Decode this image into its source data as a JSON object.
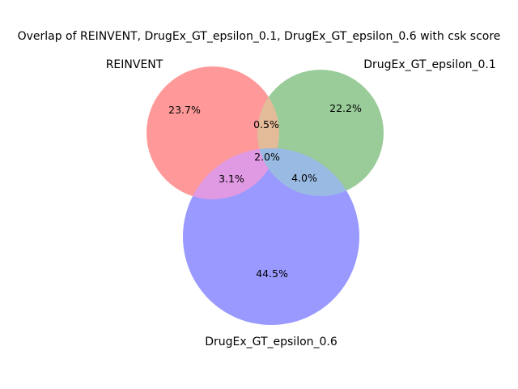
{
  "chart_data": {
    "type": "venn",
    "title": "Overlap of REINVENT, DrugEx_GT_epsilon_0.1, DrugEx_GT_epsilon_0.6 with csk score",
    "sets": [
      {
        "name": "REINVENT",
        "color": "#ff9999"
      },
      {
        "name": "DrugEx_GT_epsilon_0.1",
        "color": "#99cc99"
      },
      {
        "name": "DrugEx_GT_epsilon_0.6",
        "color": "#9999ff"
      }
    ],
    "regions": [
      {
        "sets": [
          "REINVENT"
        ],
        "label": "23.7%",
        "value": 23.7
      },
      {
        "sets": [
          "DrugEx_GT_epsilon_0.1"
        ],
        "label": "22.2%",
        "value": 22.2
      },
      {
        "sets": [
          "REINVENT",
          "DrugEx_GT_epsilon_0.1"
        ],
        "label": "0.5%",
        "value": 0.5
      },
      {
        "sets": [
          "DrugEx_GT_epsilon_0.6"
        ],
        "label": "44.5%",
        "value": 44.5
      },
      {
        "sets": [
          "REINVENT",
          "DrugEx_GT_epsilon_0.6"
        ],
        "label": "3.1%",
        "value": 3.1
      },
      {
        "sets": [
          "DrugEx_GT_epsilon_0.1",
          "DrugEx_GT_epsilon_0.6"
        ],
        "label": "4.0%",
        "value": 4.0
      },
      {
        "sets": [
          "REINVENT",
          "DrugEx_GT_epsilon_0.1",
          "DrugEx_GT_epsilon_0.6"
        ],
        "label": "2.0%",
        "value": 2.0
      }
    ],
    "colors": {
      "overlap_ab": "#e3bb99",
      "overlap_ac": "#e099e3",
      "overlap_bc": "#99bbe3"
    }
  }
}
